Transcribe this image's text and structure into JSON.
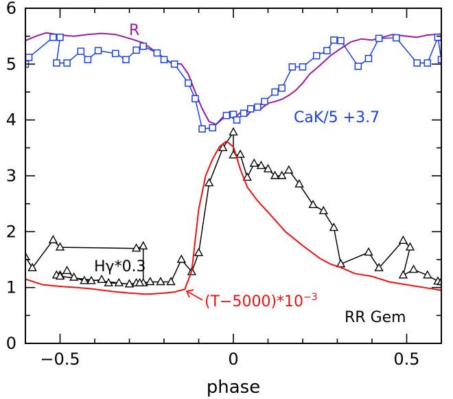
{
  "chart_data": {
    "type": "line",
    "xlabel": "phase",
    "ylabel": "",
    "xlim": [
      -0.6,
      0.6
    ],
    "ylim": [
      0,
      6
    ],
    "xticks": [
      -0.5,
      0,
      0.5
    ],
    "xtick_labels": [
      "−0.5",
      "0",
      "0.5"
    ],
    "yticks": [
      0,
      1,
      2,
      3,
      4,
      5,
      6
    ],
    "ytick_labels": [
      "0",
      "1",
      "2",
      "3",
      "4",
      "5",
      "6"
    ],
    "grid": false,
    "colors": {
      "R": "#9a1aa0",
      "CaK": "#1a3ee8",
      "Hgamma": "#000000",
      "T": "#ee1111"
    },
    "annotations": {
      "R": "R",
      "cak": "CaK/5 +3.7",
      "hgamma": "Hγ*0.3",
      "temp": "(T−5000)*10",
      "temp_exp": "−3",
      "star": "RR Gem"
    },
    "series": [
      {
        "key": "R",
        "marker": "none",
        "x": [
          -0.6,
          -0.57,
          -0.54,
          -0.5,
          -0.46,
          -0.42,
          -0.38,
          -0.34,
          -0.3,
          -0.26,
          -0.22,
          -0.18,
          -0.15,
          -0.13,
          -0.11,
          -0.09,
          -0.07,
          -0.05,
          -0.03,
          -0.01,
          0.0,
          0.02,
          0.04,
          0.06,
          0.08,
          0.1,
          0.12,
          0.14,
          0.16,
          0.18,
          0.2,
          0.22,
          0.25,
          0.28,
          0.31,
          0.34,
          0.37,
          0.4,
          0.43,
          0.46,
          0.5,
          0.53,
          0.56,
          0.6
        ],
        "y": [
          5.42,
          5.5,
          5.56,
          5.52,
          5.5,
          5.53,
          5.55,
          5.53,
          5.46,
          5.38,
          5.2,
          5.02,
          5.0,
          4.82,
          4.5,
          4.2,
          3.97,
          3.92,
          4.05,
          4.15,
          4.02,
          4.13,
          4.08,
          4.22,
          4.2,
          4.3,
          4.33,
          4.37,
          4.44,
          4.53,
          4.66,
          4.82,
          4.98,
          5.15,
          5.28,
          5.4,
          5.45,
          5.43,
          5.48,
          5.53,
          5.5,
          5.48,
          5.52,
          5.54
        ]
      },
      {
        "key": "CaK",
        "marker": "square",
        "x": [
          -0.6,
          -0.59,
          -0.52,
          -0.5,
          -0.51,
          -0.48,
          -0.44,
          -0.42,
          -0.39,
          -0.34,
          -0.31,
          -0.28,
          -0.26,
          -0.22,
          -0.2,
          -0.17,
          -0.13,
          -0.11,
          -0.09,
          -0.06,
          -0.02,
          0.0,
          0.01,
          0.03,
          0.05,
          0.07,
          0.09,
          0.12,
          0.14,
          0.17,
          0.2,
          0.24,
          0.27,
          0.29,
          0.31,
          0.36,
          0.39,
          0.42,
          0.47,
          0.53,
          0.56,
          0.59,
          0.6
        ],
        "y": [
          5.0,
          5.12,
          5.48,
          5.48,
          5.02,
          5.02,
          5.23,
          5.08,
          5.24,
          5.19,
          5.08,
          5.25,
          5.32,
          5.2,
          5.08,
          5.0,
          4.66,
          4.38,
          3.84,
          3.86,
          4.08,
          4.1,
          4.0,
          4.12,
          4.2,
          4.23,
          4.33,
          4.5,
          4.57,
          4.95,
          4.95,
          5.15,
          5.24,
          5.43,
          5.42,
          4.96,
          5.1,
          5.46,
          5.47,
          5.02,
          5.02,
          5.48,
          5.08
        ]
      },
      {
        "key": "Hgamma",
        "marker": "triangle",
        "x": [
          -0.6,
          -0.58,
          -0.52,
          -0.5,
          -0.28,
          -0.26,
          -0.26,
          -0.28,
          -0.3,
          -0.33,
          -0.36,
          -0.38,
          -0.41,
          -0.43,
          -0.46,
          -0.48,
          -0.5,
          -0.51,
          -0.5,
          -0.3,
          -0.27,
          -0.24,
          -0.21,
          -0.18,
          -0.15,
          -0.12,
          -0.1,
          -0.07,
          -0.03,
          0.0,
          0.0,
          0.02,
          0.04,
          0.06,
          0.08,
          0.1,
          0.12,
          0.14,
          0.16,
          0.19,
          0.23,
          0.26,
          0.29,
          0.31,
          0.39,
          0.42,
          0.49,
          0.51,
          0.49,
          0.52,
          0.56,
          0.59,
          0.6
        ],
        "y": [
          1.55,
          1.35,
          1.85,
          1.72,
          1.7,
          1.74,
          1.08,
          1.08,
          1.06,
          1.08,
          1.08,
          1.14,
          1.12,
          1.12,
          1.18,
          1.3,
          1.22,
          1.22,
          1.2,
          1.06,
          1.08,
          1.1,
          1.1,
          1.1,
          1.5,
          1.28,
          1.62,
          2.87,
          3.5,
          3.78,
          3.37,
          3.38,
          2.97,
          3.22,
          3.18,
          3.12,
          3.0,
          3.0,
          3.1,
          2.85,
          2.48,
          2.37,
          2.07,
          1.42,
          1.63,
          1.35,
          1.84,
          1.72,
          1.22,
          1.32,
          1.22,
          1.11,
          1.1
        ]
      },
      {
        "key": "T",
        "marker": "none",
        "x": [
          -0.6,
          -0.55,
          -0.5,
          -0.45,
          -0.4,
          -0.35,
          -0.3,
          -0.25,
          -0.2,
          -0.17,
          -0.14,
          -0.12,
          -0.1,
          -0.08,
          -0.06,
          -0.04,
          -0.02,
          0.0,
          0.02,
          0.04,
          0.07,
          0.1,
          0.15,
          0.2,
          0.25,
          0.28,
          0.31,
          0.35,
          0.4,
          0.45,
          0.5,
          0.55,
          0.6
        ],
        "y": [
          1.15,
          1.05,
          1.02,
          1.0,
          0.97,
          0.93,
          0.9,
          0.88,
          0.9,
          0.92,
          0.97,
          1.3,
          2.4,
          3.0,
          3.3,
          3.52,
          3.62,
          3.52,
          3.12,
          2.8,
          2.55,
          2.35,
          2.0,
          1.75,
          1.52,
          1.42,
          1.36,
          1.25,
          1.2,
          1.1,
          1.05,
          1.0,
          0.95
        ]
      }
    ]
  }
}
